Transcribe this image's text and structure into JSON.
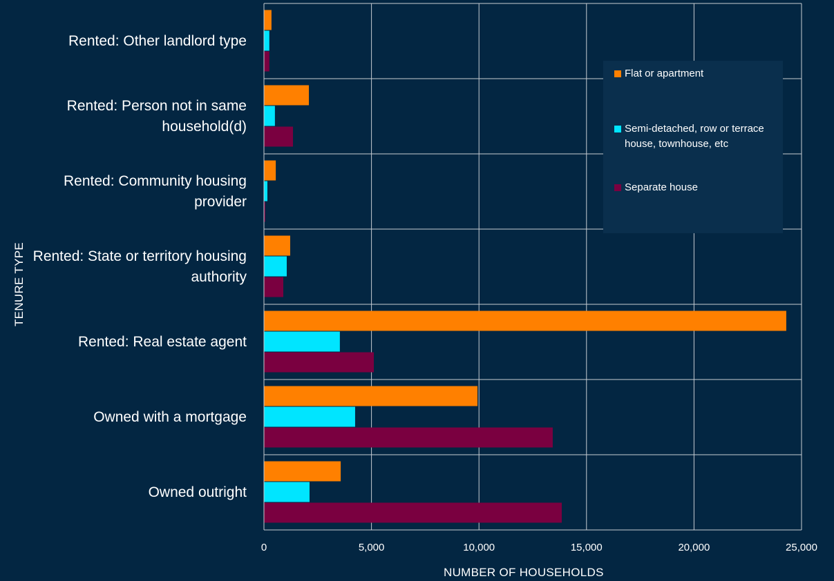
{
  "chart_data": {
    "type": "bar",
    "orientation": "horizontal",
    "x_label": "NUMBER OF HOUSEHOLDS",
    "y_label": "TENURE TYPE",
    "categories": [
      "Rented: Other landlord type",
      "Rented: Person not in same household(d)",
      "Rented: Community housing provider",
      "Rented: State or territory housing authority",
      "Rented: Real estate agent",
      "Owned with a mortgage",
      "Owned outright"
    ],
    "series": [
      {
        "name": "Flat or apartment",
        "color": "#ff8000",
        "values": [
          350,
          2090,
          550,
          1220,
          24290,
          9930,
          3570
        ]
      },
      {
        "name": "Semi-detached, row or terrace house, townhouse, etc",
        "color": "#00e5ff",
        "values": [
          250,
          510,
          160,
          1060,
          3530,
          4240,
          2120
        ]
      },
      {
        "name": "Separate house",
        "color": "#7a0040",
        "values": [
          250,
          1350,
          60,
          900,
          5110,
          13430,
          13850
        ]
      }
    ],
    "xlim": [
      0,
      25000
    ],
    "xticks": [
      0,
      {
        "value": 5000,
        "label": "5,000"
      },
      {
        "value": 10000,
        "label": "10,000"
      },
      {
        "value": 15000,
        "label": "15,000"
      },
      {
        "value": 20000,
        "label": "20,000"
      },
      {
        "value": 25000,
        "label": "25,000"
      }
    ],
    "grid": true,
    "legend_position": "upper right"
  }
}
